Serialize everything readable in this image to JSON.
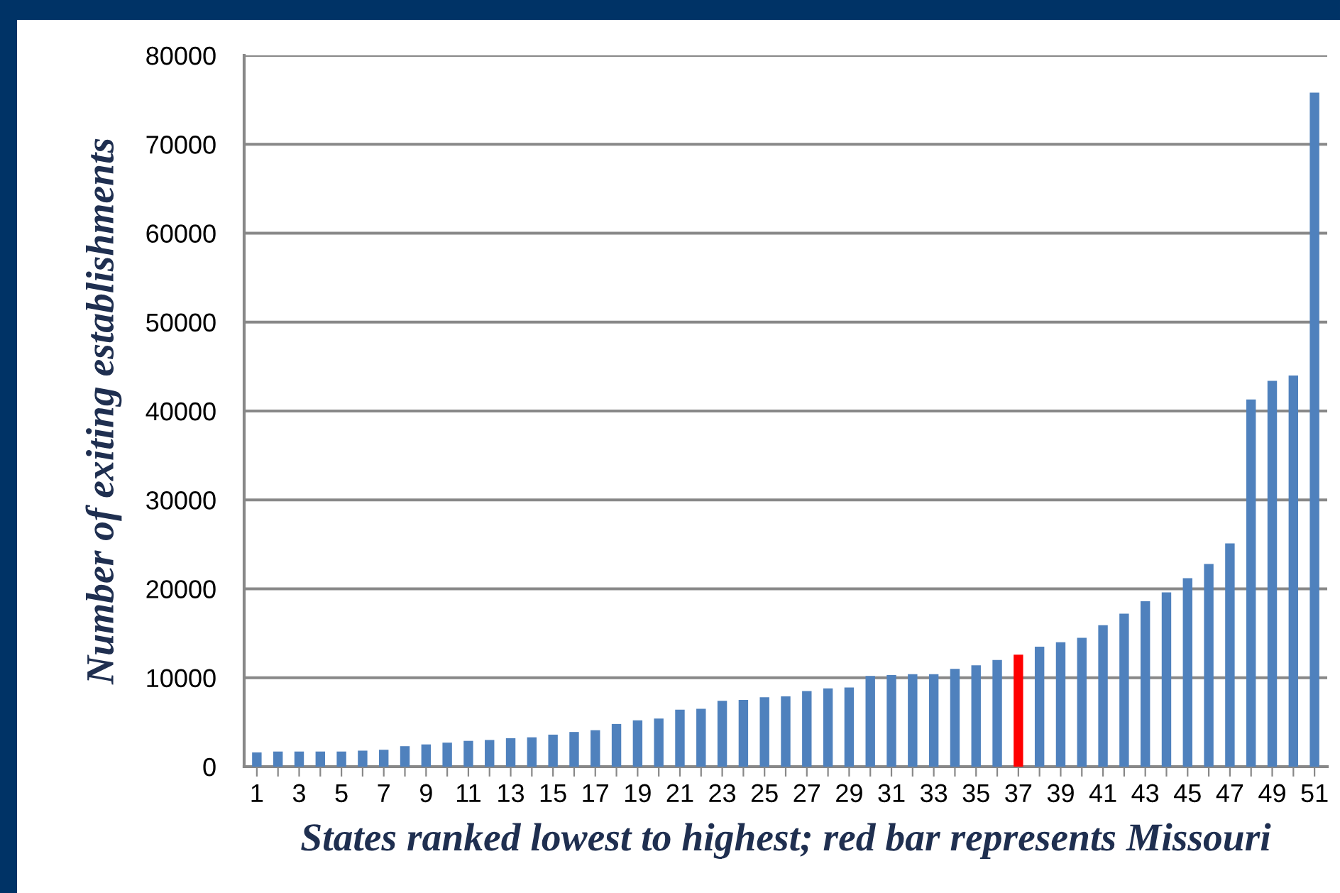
{
  "chart_data": {
    "type": "bar",
    "xlabel": "States ranked lowest to highest; red bar represents Missouri",
    "ylabel": "Number of exiting establishments",
    "categories": [
      "1",
      null,
      "3",
      null,
      "5",
      null,
      "7",
      null,
      "9",
      null,
      "11",
      null,
      "13",
      null,
      "15",
      null,
      "17",
      null,
      "19",
      null,
      "21",
      null,
      "23",
      null,
      "25",
      null,
      "27",
      null,
      "29",
      null,
      "31",
      null,
      "33",
      null,
      "35",
      null,
      "37",
      null,
      "39",
      null,
      "41",
      null,
      "43",
      null,
      "45",
      null,
      "47",
      null,
      "49",
      null,
      "51"
    ],
    "values": [
      1600,
      1700,
      1700,
      1700,
      1700,
      1800,
      1900,
      2300,
      2500,
      2700,
      2900,
      3000,
      3200,
      3300,
      3600,
      3900,
      4100,
      4800,
      5200,
      5400,
      6400,
      6500,
      7400,
      7500,
      7800,
      7900,
      8500,
      8800,
      8900,
      10200,
      10300,
      10400,
      10400,
      11000,
      11400,
      12000,
      12600,
      13500,
      14000,
      14500,
      15900,
      17200,
      18600,
      19600,
      21200,
      22800,
      25100,
      41300,
      43400,
      44000,
      75800
    ],
    "colors": [
      "#4f81bd",
      "#4f81bd",
      "#4f81bd",
      "#4f81bd",
      "#4f81bd",
      "#4f81bd",
      "#4f81bd",
      "#4f81bd",
      "#4f81bd",
      "#4f81bd",
      "#4f81bd",
      "#4f81bd",
      "#4f81bd",
      "#4f81bd",
      "#4f81bd",
      "#4f81bd",
      "#4f81bd",
      "#4f81bd",
      "#4f81bd",
      "#4f81bd",
      "#4f81bd",
      "#4f81bd",
      "#4f81bd",
      "#4f81bd",
      "#4f81bd",
      "#4f81bd",
      "#4f81bd",
      "#4f81bd",
      "#4f81bd",
      "#4f81bd",
      "#4f81bd",
      "#4f81bd",
      "#4f81bd",
      "#4f81bd",
      "#4f81bd",
      "#4f81bd",
      "#ff0000",
      "#4f81bd",
      "#4f81bd",
      "#4f81bd",
      "#4f81bd",
      "#4f81bd",
      "#4f81bd",
      "#4f81bd",
      "#4f81bd",
      "#4f81bd",
      "#4f81bd",
      "#4f81bd",
      "#4f81bd",
      "#4f81bd",
      "#4f81bd"
    ],
    "ylim": [
      0,
      80000
    ],
    "yticks": [
      0,
      10000,
      20000,
      30000,
      40000,
      50000,
      60000,
      70000,
      80000
    ],
    "grid": "y",
    "legend": false
  }
}
